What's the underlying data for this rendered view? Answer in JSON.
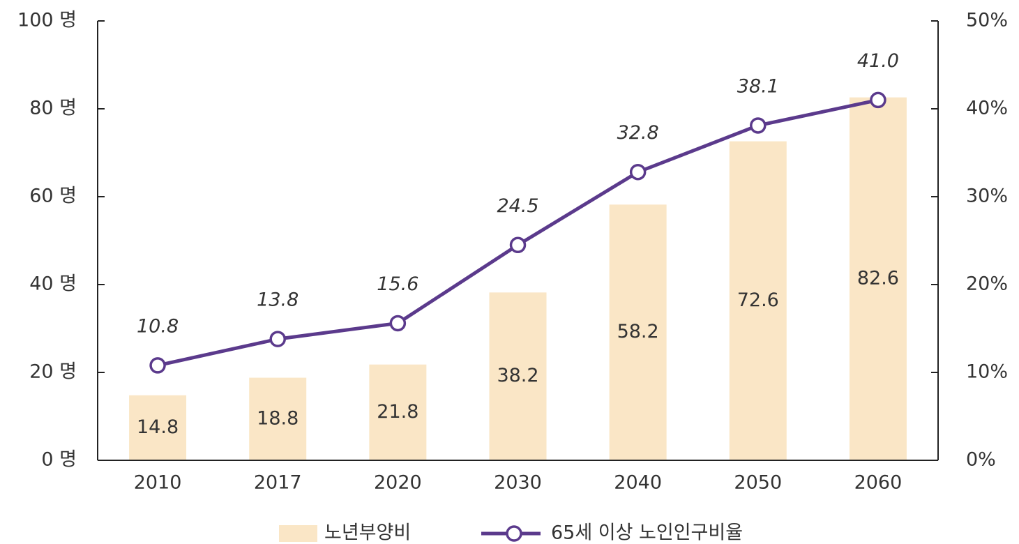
{
  "chart_data": {
    "type": "bar",
    "categories": [
      "2010",
      "2017",
      "2020",
      "2030",
      "2040",
      "2050",
      "2060"
    ],
    "series": [
      {
        "name": "노년부양비",
        "type": "bar",
        "color": "#fae6c6",
        "values": [
          14.8,
          18.8,
          21.8,
          38.2,
          58.2,
          72.6,
          82.6
        ]
      },
      {
        "name": "65세 이상 노인인구비율",
        "type": "line",
        "axis": "y2",
        "color": "#5b3a8c",
        "values": [
          10.8,
          13.8,
          15.6,
          24.5,
          32.8,
          38.1,
          41.0
        ],
        "value_labels": [
          "10.8",
          "13.8",
          "15.6",
          "24.5",
          "32.8",
          "38.1",
          "41.0"
        ]
      }
    ],
    "ylim": [
      0,
      100
    ],
    "yticks": [
      {
        "value": 0,
        "label": "0 명"
      },
      {
        "value": 20,
        "label": "20 명"
      },
      {
        "value": 40,
        "label": "40 명"
      },
      {
        "value": 60,
        "label": "60 명"
      },
      {
        "value": 80,
        "label": "80 명"
      },
      {
        "value": 100,
        "label": "100 명"
      }
    ],
    "y2lim": [
      0,
      50
    ],
    "y2ticks": [
      {
        "value": 0,
        "label": "0%"
      },
      {
        "value": 10,
        "label": "10%"
      },
      {
        "value": 20,
        "label": "20%"
      },
      {
        "value": 30,
        "label": "30%"
      },
      {
        "value": 40,
        "label": "40%"
      },
      {
        "value": 50,
        "label": "50%"
      }
    ],
    "legend": "bottom"
  }
}
